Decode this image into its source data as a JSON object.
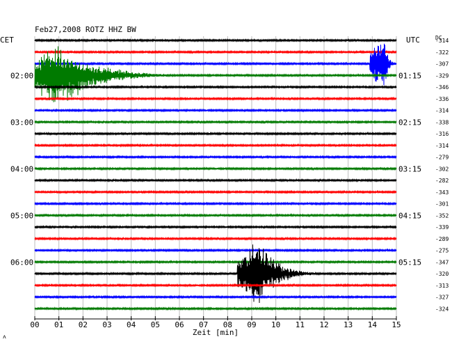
{
  "chart_data": {
    "type": "line",
    "title": "Feb27,2008   ROTZ HHZ BW",
    "left_axis_label": "CET",
    "right_axis_label": "UTC",
    "dc_label": "DC",
    "xlabel": "Zeit [min]",
    "x_ticks": [
      "00",
      "01",
      "02",
      "03",
      "04",
      "05",
      "06",
      "07",
      "08",
      "09",
      "10",
      "11",
      "12",
      "13",
      "14",
      "15"
    ],
    "xlim": [
      0,
      15
    ],
    "left_hour_labels": [
      {
        "trace": 3,
        "label": "02:00"
      },
      {
        "trace": 7,
        "label": "03:00"
      },
      {
        "trace": 11,
        "label": "04:00"
      },
      {
        "trace": 15,
        "label": "05:00"
      },
      {
        "trace": 19,
        "label": "06:00"
      }
    ],
    "right_hour_labels": [
      {
        "trace": 3,
        "label": "01:15"
      },
      {
        "trace": 7,
        "label": "02:15"
      },
      {
        "trace": 11,
        "label": "03:15"
      },
      {
        "trace": 15,
        "label": "04:15"
      },
      {
        "trace": 19,
        "label": "05:15"
      }
    ],
    "dc_offsets": [
      "-314",
      "-322",
      "-307",
      "-329",
      "-346",
      "-336",
      "-314",
      "-338",
      "-316",
      "-314",
      "-279",
      "-302",
      "-282",
      "-343",
      "-301",
      "-352",
      "-339",
      "-289",
      "-275",
      "-347",
      "-320",
      "-313",
      "-327",
      "-324"
    ],
    "trace_colors": [
      "#000000",
      "#ff0000",
      "#0000ff",
      "#007a00"
    ],
    "events": [
      {
        "trace": 3,
        "start_min": 0.0,
        "end_min": 5.5,
        "peak_min": 1.0,
        "amplitude": 1.0
      },
      {
        "trace": 2,
        "start_min": 13.9,
        "end_min": 15.0,
        "peak_min": 14.5,
        "amplitude": 0.8
      },
      {
        "trace": 20,
        "start_min": 8.4,
        "end_min": 11.6,
        "peak_min": 9.3,
        "amplitude": 1.0
      }
    ],
    "corner_mark": "ᴧ"
  }
}
